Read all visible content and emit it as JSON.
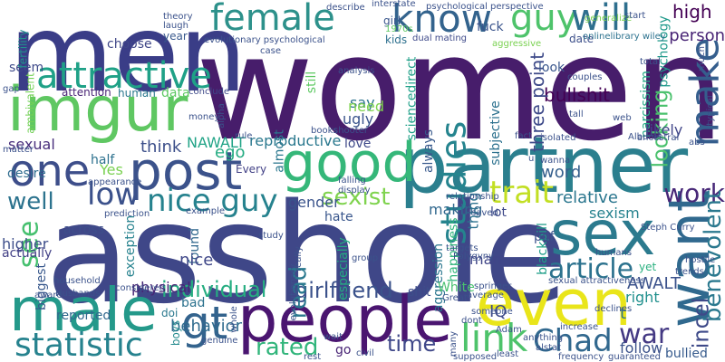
{
  "words": [
    {
      "text": "women",
      "color": "#471d6b"
    },
    {
      "text": "asshole",
      "color": "#3f4788"
    },
    {
      "text": "men",
      "color": "#3a3d87"
    },
    {
      "text": "partner",
      "color": "#2b7f8e"
    },
    {
      "text": "people",
      "color": "#4a1570"
    },
    {
      "text": "imgur",
      "color": "#5fc762"
    },
    {
      "text": "post",
      "color": "#3b528b"
    },
    {
      "text": "good",
      "color": "#35b779"
    },
    {
      "text": "male",
      "color": "#24998a"
    },
    {
      "text": "even",
      "color": "#e9e51a"
    },
    {
      "text": "sex",
      "color": "#2b7a8e"
    },
    {
      "text": "want",
      "color": "#30698e"
    },
    {
      "text": "female",
      "color": "#2d918b"
    },
    {
      "text": "know",
      "color": "#33638d"
    },
    {
      "text": "guy",
      "color": "#4ec36b"
    },
    {
      "text": "will",
      "color": "#2e6f8e"
    },
    {
      "text": "one",
      "color": "#3d4e8a"
    },
    {
      "text": "attractive",
      "color": "#1fa187"
    },
    {
      "text": "gt",
      "color": "#33638d"
    },
    {
      "text": "link",
      "color": "#4ec36b"
    },
    {
      "text": "Chad",
      "color": "#31688e"
    },
    {
      "text": "make",
      "color": "#355e8d"
    },
    {
      "text": "statistic",
      "color": "#26828e"
    },
    {
      "text": "low",
      "color": "#3b518b"
    },
    {
      "text": "nice guy",
      "color": "#26828e"
    },
    {
      "text": "trait",
      "color": "#c2df23"
    },
    {
      "text": "studies",
      "color": "#25848e"
    },
    {
      "text": "article",
      "color": "#2c728e"
    },
    {
      "text": "war",
      "color": "#443983"
    },
    {
      "text": "work",
      "color": "#482878"
    },
    {
      "text": "benevolent",
      "color": "#2a788e"
    },
    {
      "text": "incel",
      "color": "#3e4a89"
    },
    {
      "text": "see",
      "color": "#46c06f"
    },
    {
      "text": "well",
      "color": "#2c738e"
    },
    {
      "text": "sexist",
      "color": "#7fd34e"
    },
    {
      "text": "time",
      "color": "#3f4889"
    },
    {
      "text": "rated",
      "color": "#31b57b"
    },
    {
      "text": "individual",
      "color": "#26ad81"
    },
    {
      "text": "girlfriend",
      "color": "#3b528b"
    },
    {
      "text": "read",
      "color": "#2a788e"
    },
    {
      "text": "looking",
      "color": "#4ac16d"
    },
    {
      "text": "high",
      "color": "#440154"
    },
    {
      "text": "bullshit",
      "color": "#440154"
    },
    {
      "text": "three point",
      "color": "#3e4a89"
    },
    {
      "text": "reproductive",
      "color": "#2a788e"
    },
    {
      "text": "gender",
      "color": "#3a538b"
    },
    {
      "text": "hate",
      "color": "#39568c"
    },
    {
      "text": "love",
      "color": "#3e4989"
    },
    {
      "text": "word",
      "color": "#355f8d"
    },
    {
      "text": "relative",
      "color": "#2a768e"
    },
    {
      "text": "sexism",
      "color": "#26828e"
    },
    {
      "text": "person",
      "color": "#482475"
    },
    {
      "text": "psychology",
      "color": "#1f998a"
    },
    {
      "text": "narcissism",
      "color": "#22a884"
    },
    {
      "text": "likely",
      "color": "#404588"
    },
    {
      "text": "AWALT",
      "color": "#3b528b"
    },
    {
      "text": "right",
      "color": "#21908d"
    },
    {
      "text": "NAWALT",
      "color": "#20a386"
    },
    {
      "text": "think",
      "color": "#3c4f8a"
    },
    {
      "text": "ego",
      "color": "#25ac82"
    },
    {
      "text": "Yes",
      "color": "#7ad151"
    },
    {
      "text": "half",
      "color": "#2d718e"
    },
    {
      "text": "sexual",
      "color": "#472d7b"
    },
    {
      "text": "desire",
      "color": "#2f6c8e"
    },
    {
      "text": "higher",
      "color": "#3d4e8a"
    },
    {
      "text": "actually",
      "color": "#424086"
    },
    {
      "text": "across",
      "color": "#3d4e8a"
    },
    {
      "text": "found",
      "color": "#31688e"
    },
    {
      "text": "nice",
      "color": "#3f4788"
    },
    {
      "text": "physical",
      "color": "#482475"
    },
    {
      "text": "bad",
      "color": "#2c728e"
    },
    {
      "text": "behavior",
      "color": "#2f6b8e"
    },
    {
      "text": "reported",
      "color": "#31688e"
    },
    {
      "text": "biggest",
      "color": "#38588c"
    },
    {
      "text": "exception",
      "color": "#26828e"
    },
    {
      "text": "choose",
      "color": "#3f4788"
    },
    {
      "text": "attention",
      "color": "#482475"
    },
    {
      "text": "human",
      "color": "#2a788e"
    },
    {
      "text": "data",
      "color": "#5ec962"
    },
    {
      "text": "seem",
      "color": "#3e4989"
    },
    {
      "text": "fertility",
      "color": "#21918c"
    },
    {
      "text": "ambivalent",
      "color": "#73d056"
    },
    {
      "text": "Every",
      "color": "#424186"
    },
    {
      "text": "almost",
      "color": "#2a778e"
    },
    {
      "text": "still",
      "color": "#5ec962"
    },
    {
      "text": "say",
      "color": "#2c738e"
    },
    {
      "text": "ugly",
      "color": "#3a548c"
    },
    {
      "text": "need",
      "color": "#7fd34e"
    },
    {
      "text": "sciencedirect",
      "color": "#1fa088"
    },
    {
      "text": "always",
      "color": "#38598c"
    },
    {
      "text": "especially",
      "color": "#25ab82"
    },
    {
      "text": "aggression",
      "color": "#2a768e"
    },
    {
      "text": "happiness",
      "color": "#31b57b"
    },
    {
      "text": "making",
      "color": "#31688e"
    },
    {
      "text": "thing",
      "color": "#2c728e"
    },
    {
      "text": "subjective",
      "color": "#2c718e"
    },
    {
      "text": "man",
      "color": "#404588"
    },
    {
      "text": "blackpill",
      "color": "#1f9e89"
    },
    {
      "text": "pdf",
      "color": "#3b518b"
    },
    {
      "text": "lot",
      "color": "#3e4989"
    },
    {
      "text": "White",
      "color": "#48c16e"
    },
    {
      "text": "shit",
      "color": "#3d4e8a"
    },
    {
      "text": "IQ",
      "color": "#3e4a89"
    },
    {
      "text": "t",
      "color": "#2c728e"
    },
    {
      "text": "follow",
      "color": "#3b528b"
    },
    {
      "text": "bullied",
      "color": "#375b8d"
    },
    {
      "text": "go",
      "color": "#482475"
    },
    {
      "text": "doi",
      "color": "#2a788e"
    },
    {
      "text": "boys",
      "color": "#238a8d"
    },
    {
      "text": "kids",
      "color": "#2d708e"
    },
    {
      "text": "girl",
      "color": "#39568c"
    },
    {
      "text": "year",
      "color": "#38588c"
    },
    {
      "text": "date",
      "color": "#3c4f8a"
    },
    {
      "text": "look",
      "color": "#39568c"
    },
    {
      "text": "yet",
      "color": "#2ab07f"
    },
    {
      "text": "evolutionary psychological",
      "color": "#3b528b"
    },
    {
      "text": "psychological perspective",
      "color": "#3b528b"
    },
    {
      "text": "dual mating",
      "color": "#3e4989"
    },
    {
      "text": "interstate",
      "color": "#3b528b"
    },
    {
      "text": "1970s",
      "color": "#5ec962"
    },
    {
      "text": "fuck",
      "color": "#3a548c"
    },
    {
      "text": "onlinelibrary wiley",
      "color": "#2c728e"
    },
    {
      "text": "theory",
      "color": "#3b528b"
    },
    {
      "text": "laugh",
      "color": "#3b528b"
    },
    {
      "text": "conclude",
      "color": "#3e4989"
    },
    {
      "text": "generalize",
      "color": "#7ad151"
    },
    {
      "text": "aggressive",
      "color": "#7ad151"
    },
    {
      "text": "Albums",
      "color": "#3b528b"
    },
    {
      "text": "isolated",
      "color": "#3b528b"
    },
    {
      "text": "ancestral",
      "color": "#3b528b"
    },
    {
      "text": "wanna",
      "color": "#3b528b"
    },
    {
      "text": "abs",
      "color": "#3b528b"
    },
    {
      "text": "fact",
      "color": "#3b528b"
    },
    {
      "text": "tall",
      "color": "#3b528b"
    },
    {
      "text": "total",
      "color": "#3b528b"
    },
    {
      "text": "couples",
      "color": "#3b528b"
    },
    {
      "text": "relationship",
      "color": "#3b528b"
    },
    {
      "text": "hostile",
      "color": "#3b528b"
    },
    {
      "text": "trends",
      "color": "#3b528b"
    },
    {
      "text": "declines",
      "color": "#3b528b"
    },
    {
      "text": "frequency",
      "color": "#3b528b"
    },
    {
      "text": "guaranteed",
      "color": "#3b528b"
    },
    {
      "text": "sexual attractiveness",
      "color": "#3b528b"
    },
    {
      "text": "Steph Curry",
      "color": "#3b528b"
    },
    {
      "text": "average",
      "color": "#3b528b"
    },
    {
      "text": "springer",
      "color": "#3b528b"
    },
    {
      "text": "study",
      "color": "#3b528b"
    },
    {
      "text": "considered",
      "color": "#3b528b"
    },
    {
      "text": "household",
      "color": "#3b528b"
    },
    {
      "text": "Husbands",
      "color": "#3b528b"
    },
    {
      "text": "appearance",
      "color": "#3b528b"
    },
    {
      "text": "example",
      "color": "#3b528b"
    },
    {
      "text": "books",
      "color": "#3b528b"
    },
    {
      "text": "shooter",
      "color": "#3b528b"
    },
    {
      "text": "display",
      "color": "#3b528b"
    },
    {
      "text": "genuine",
      "color": "#3b528b"
    },
    {
      "text": "supposed",
      "color": "#3b528b"
    },
    {
      "text": "least",
      "color": "#3b528b"
    },
    {
      "text": "anything",
      "color": "#3b528b"
    },
    {
      "text": "increase",
      "color": "#3b528b"
    },
    {
      "text": "alstat",
      "color": "#3b528b"
    },
    {
      "text": "civil",
      "color": "#3b528b"
    },
    {
      "text": "rest",
      "color": "#3b528b"
    },
    {
      "text": "Adam",
      "color": "#3b528b"
    },
    {
      "text": "Polygyny",
      "color": "#3b528b"
    },
    {
      "text": "targets",
      "color": "#3b528b"
    },
    {
      "text": "saved",
      "color": "#3b528b"
    },
    {
      "text": "dont",
      "color": "#3b528b"
    },
    {
      "text": "wait",
      "color": "#3b528b"
    },
    {
      "text": "evolutionary",
      "color": "#3b528b"
    },
    {
      "text": "matter",
      "color": "#3b528b"
    },
    {
      "text": "gap",
      "color": "#3b528b"
    },
    {
      "text": "aware",
      "color": "#3b528b"
    },
    {
      "text": "money",
      "color": "#3b528b"
    },
    {
      "text": "describe",
      "color": "#3b528b"
    },
    {
      "text": "case",
      "color": "#3b528b"
    },
    {
      "text": "typical",
      "color": "#3b528b"
    },
    {
      "text": "rule",
      "color": "#3b528b"
    },
    {
      "text": "group",
      "color": "#3b528b"
    },
    {
      "text": "whole",
      "color": "#3b528b"
    },
    {
      "text": "Great",
      "color": "#3b528b"
    },
    {
      "text": "start",
      "color": "#3b528b"
    },
    {
      "text": "web",
      "color": "#3b528b"
    },
    {
      "text": "alpha",
      "color": "#3b528b"
    },
    {
      "text": "really",
      "color": "#3b528b"
    },
    {
      "text": "prediction",
      "color": "#3b528b"
    },
    {
      "text": "humans",
      "color": "#3b528b"
    },
    {
      "text": "much",
      "color": "#3b528b"
    },
    {
      "text": "someone",
      "color": "#3b528b"
    },
    {
      "text": "many",
      "color": "#3b528b"
    },
    {
      "text": "falling",
      "color": "#3b528b"
    },
    {
      "text": "u",
      "color": "#3b528b"
    },
    {
      "text": "analysis",
      "color": "#3b528b"
    }
  ]
}
